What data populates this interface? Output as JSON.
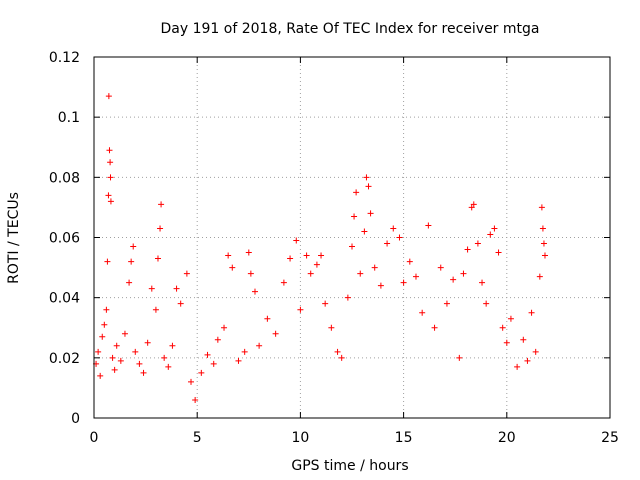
{
  "chart_data": {
    "type": "scatter",
    "title": "Day 191 of 2018, Rate Of TEC Index for receiver mtga",
    "xlabel": "GPS time / hours",
    "ylabel": "ROTI / TECUs",
    "xlim": [
      0,
      25
    ],
    "ylim": [
      0,
      0.12
    ],
    "x_ticks": [
      0,
      5,
      10,
      15,
      20,
      25
    ],
    "x_tick_labels": [
      "0",
      "5",
      "10",
      "15",
      "20",
      "25"
    ],
    "y_ticks": [
      0,
      0.02,
      0.04,
      0.06,
      0.08,
      0.1,
      0.12
    ],
    "y_tick_labels": [
      "0",
      "0.02",
      "0.04",
      "0.06",
      "0.08",
      "0.1",
      "0.12"
    ],
    "grid": true,
    "marker": "+",
    "color": "#ff0000",
    "series": [
      {
        "name": "ROTI",
        "points": [
          [
            0.1,
            0.018
          ],
          [
            0.2,
            0.022
          ],
          [
            0.3,
            0.014
          ],
          [
            0.4,
            0.027
          ],
          [
            0.5,
            0.031
          ],
          [
            0.6,
            0.036
          ],
          [
            0.65,
            0.052
          ],
          [
            0.7,
            0.074
          ],
          [
            0.72,
            0.107
          ],
          [
            0.75,
            0.089
          ],
          [
            0.78,
            0.085
          ],
          [
            0.8,
            0.08
          ],
          [
            0.82,
            0.072
          ],
          [
            0.9,
            0.02
          ],
          [
            1.0,
            0.016
          ],
          [
            1.1,
            0.024
          ],
          [
            1.3,
            0.019
          ],
          [
            1.5,
            0.028
          ],
          [
            1.7,
            0.045
          ],
          [
            1.8,
            0.052
          ],
          [
            1.9,
            0.057
          ],
          [
            2.0,
            0.022
          ],
          [
            2.2,
            0.018
          ],
          [
            2.4,
            0.015
          ],
          [
            2.6,
            0.025
          ],
          [
            2.8,
            0.043
          ],
          [
            3.0,
            0.036
          ],
          [
            3.1,
            0.053
          ],
          [
            3.2,
            0.063
          ],
          [
            3.25,
            0.071
          ],
          [
            3.4,
            0.02
          ],
          [
            3.6,
            0.017
          ],
          [
            3.8,
            0.024
          ],
          [
            4.0,
            0.043
          ],
          [
            4.2,
            0.038
          ],
          [
            4.5,
            0.048
          ],
          [
            4.7,
            0.012
          ],
          [
            4.9,
            0.006
          ],
          [
            5.2,
            0.015
          ],
          [
            5.5,
            0.021
          ],
          [
            5.8,
            0.018
          ],
          [
            6.0,
            0.026
          ],
          [
            6.3,
            0.03
          ],
          [
            6.5,
            0.054
          ],
          [
            6.7,
            0.05
          ],
          [
            7.0,
            0.019
          ],
          [
            7.3,
            0.022
          ],
          [
            7.5,
            0.055
          ],
          [
            7.6,
            0.048
          ],
          [
            7.8,
            0.042
          ],
          [
            8.0,
            0.024
          ],
          [
            8.4,
            0.033
          ],
          [
            8.8,
            0.028
          ],
          [
            9.2,
            0.045
          ],
          [
            9.5,
            0.053
          ],
          [
            9.8,
            0.059
          ],
          [
            10.0,
            0.036
          ],
          [
            10.3,
            0.054
          ],
          [
            10.5,
            0.048
          ],
          [
            10.8,
            0.051
          ],
          [
            11.0,
            0.054
          ],
          [
            11.2,
            0.038
          ],
          [
            11.5,
            0.03
          ],
          [
            11.8,
            0.022
          ],
          [
            12.0,
            0.02
          ],
          [
            12.3,
            0.04
          ],
          [
            12.5,
            0.057
          ],
          [
            12.6,
            0.067
          ],
          [
            12.7,
            0.075
          ],
          [
            12.9,
            0.048
          ],
          [
            13.1,
            0.062
          ],
          [
            13.2,
            0.08
          ],
          [
            13.3,
            0.077
          ],
          [
            13.4,
            0.068
          ],
          [
            13.6,
            0.05
          ],
          [
            13.9,
            0.044
          ],
          [
            14.2,
            0.058
          ],
          [
            14.5,
            0.063
          ],
          [
            14.8,
            0.06
          ],
          [
            15.0,
            0.045
          ],
          [
            15.3,
            0.052
          ],
          [
            15.6,
            0.047
          ],
          [
            15.9,
            0.035
          ],
          [
            16.2,
            0.064
          ],
          [
            16.5,
            0.03
          ],
          [
            16.8,
            0.05
          ],
          [
            17.1,
            0.038
          ],
          [
            17.4,
            0.046
          ],
          [
            17.7,
            0.02
          ],
          [
            17.9,
            0.048
          ],
          [
            18.1,
            0.056
          ],
          [
            18.3,
            0.07
          ],
          [
            18.4,
            0.071
          ],
          [
            18.6,
            0.058
          ],
          [
            18.8,
            0.045
          ],
          [
            19.0,
            0.038
          ],
          [
            19.2,
            0.061
          ],
          [
            19.4,
            0.063
          ],
          [
            19.6,
            0.055
          ],
          [
            19.8,
            0.03
          ],
          [
            20.0,
            0.025
          ],
          [
            20.2,
            0.033
          ],
          [
            20.5,
            0.017
          ],
          [
            20.8,
            0.026
          ],
          [
            21.0,
            0.019
          ],
          [
            21.2,
            0.035
          ],
          [
            21.4,
            0.022
          ],
          [
            21.6,
            0.047
          ],
          [
            21.7,
            0.07
          ],
          [
            21.75,
            0.063
          ],
          [
            21.8,
            0.058
          ],
          [
            21.85,
            0.054
          ]
        ]
      }
    ]
  }
}
